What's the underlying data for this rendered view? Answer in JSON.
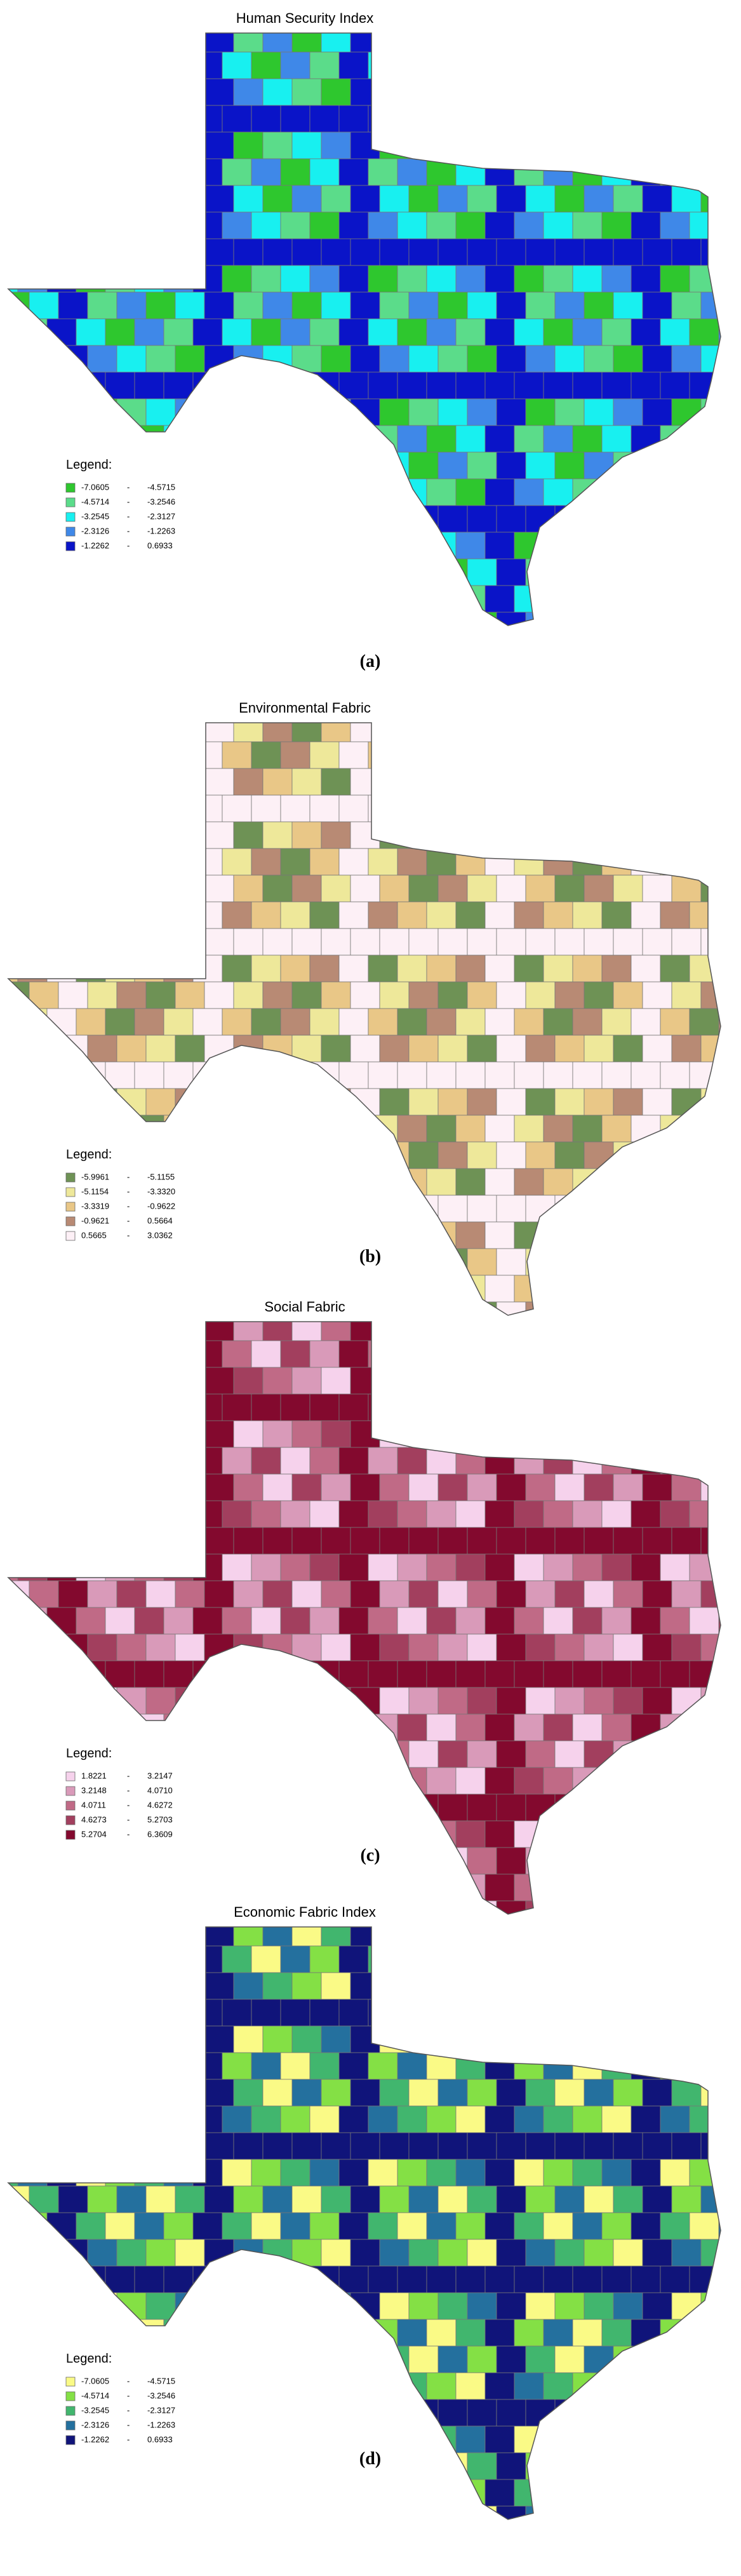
{
  "panels": [
    {
      "title": "Human Security Index",
      "caption": "(a)",
      "legend": {
        "title": "Legend:",
        "items": [
          {
            "low": "-7.0605",
            "high": "-4.5715",
            "color": "#2ec72e"
          },
          {
            "low": "-4.5714",
            "high": "-3.2546",
            "color": "#5bdc8a"
          },
          {
            "low": "-3.2545",
            "high": "-2.3127",
            "color": "#18f0f0"
          },
          {
            "low": "-2.3126",
            "high": "-1.2263",
            "color": "#3f88e8"
          },
          {
            "low": "-1.2262",
            "high": "0.6933",
            "color": "#0a14c8"
          }
        ]
      }
    },
    {
      "title": "Environmental Fabric",
      "caption": "(b)",
      "legend": {
        "title": "Legend:",
        "items": [
          {
            "low": "-5.9961",
            "high": "-5.1155",
            "color": "#6e9255"
          },
          {
            "low": "-5.1154",
            "high": "-3.3320",
            "color": "#eee89a"
          },
          {
            "low": "-3.3319",
            "high": "-0.9622",
            "color": "#e9c787"
          },
          {
            "low": "-0.9621",
            "high": "0.5664",
            "color": "#b88a74"
          },
          {
            "low": "0.5665",
            "high": "3.0362",
            "color": "#fdf0f6"
          }
        ]
      }
    },
    {
      "title": "Social Fabric",
      "caption": "(c)",
      "legend": {
        "title": "Legend:",
        "items": [
          {
            "low": "1.8221",
            "high": "3.2147",
            "color": "#f6d2ec"
          },
          {
            "low": "3.2148",
            "high": "4.0710",
            "color": "#d99ab9"
          },
          {
            "low": "4.0711",
            "high": "4.6272",
            "color": "#c06a86"
          },
          {
            "low": "4.6273",
            "high": "5.2703",
            "color": "#a23f5e"
          },
          {
            "low": "5.2704",
            "high": "6.3609",
            "color": "#83092e"
          }
        ]
      }
    },
    {
      "title": "Economic Fabric Index",
      "caption": "(d)",
      "legend": {
        "title": "Legend:",
        "items": [
          {
            "low": "-7.0605",
            "high": "-4.5715",
            "color": "#fafa86"
          },
          {
            "low": "-4.5714",
            "high": "-3.2546",
            "color": "#84e045"
          },
          {
            "low": "-3.2545",
            "high": "-2.3127",
            "color": "#41b66e"
          },
          {
            "low": "-2.3126",
            "high": "-1.2263",
            "color": "#24709e"
          },
          {
            "low": "-1.2262",
            "high": "0.6933",
            "color": "#10147a"
          }
        ]
      }
    }
  ]
}
